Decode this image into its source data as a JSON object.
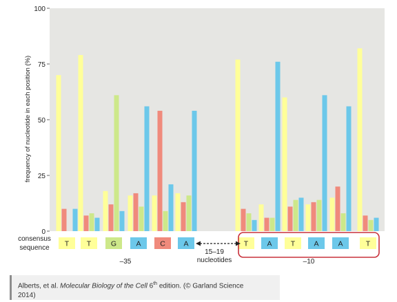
{
  "chart_data": {
    "type": "bar",
    "ylabel": "frequency of nucleotide in each position (%)",
    "ylim": [
      0,
      100
    ],
    "yticks": [
      "0",
      "25",
      "50",
      "75",
      "100"
    ],
    "bases": [
      "T",
      "C",
      "G",
      "A"
    ],
    "base_colors": {
      "T": "#ffff99",
      "C": "#f08a7c",
      "G": "#cde88a",
      "A": "#6cc8ea"
    },
    "positions": [
      {
        "consensus": "T",
        "T": 70,
        "C": 10,
        "G": 0,
        "A": 10
      },
      {
        "consensus": "T",
        "T": 79,
        "C": 7,
        "G": 8,
        "A": 6
      },
      {
        "consensus": "G",
        "T": 18,
        "C": 12,
        "G": 61,
        "A": 9
      },
      {
        "consensus": "A",
        "T": 16,
        "C": 17,
        "G": 11,
        "A": 56
      },
      {
        "consensus": "C",
        "T": 16,
        "C": 54,
        "G": 9,
        "A": 21
      },
      {
        "consensus": "A",
        "T": 17,
        "C": 13,
        "G": 16,
        "A": 54
      },
      {
        "consensus": "T",
        "T": 77,
        "C": 10,
        "G": 8,
        "A": 5
      },
      {
        "consensus": "A",
        "T": 12,
        "C": 6,
        "G": 6,
        "A": 76
      },
      {
        "consensus": "T",
        "T": 60,
        "C": 11,
        "G": 14,
        "A": 15
      },
      {
        "consensus": "A",
        "T": 12,
        "C": 13,
        "G": 14,
        "A": 61
      },
      {
        "consensus": "A",
        "T": 15,
        "C": 20,
        "G": 8,
        "A": 56
      },
      {
        "consensus": "T",
        "T": 82,
        "C": 7,
        "G": 5,
        "A": 6
      }
    ],
    "row_label_line1": "consensus",
    "row_label_line2": "sequence",
    "group_labels": [
      "–35",
      "–10"
    ],
    "spacer_label_line1": "15–19",
    "spacer_label_line2": "nucleotides",
    "highlight_color": "#c8303a"
  },
  "caption": {
    "prefix": "Alberts, et al. ",
    "title": "Molecular Biology of the Cell",
    "edition_num": " 6",
    "edition_sup": "th",
    "suffix_line1": " edition. (© Garland Science",
    "line2": "2014)"
  }
}
